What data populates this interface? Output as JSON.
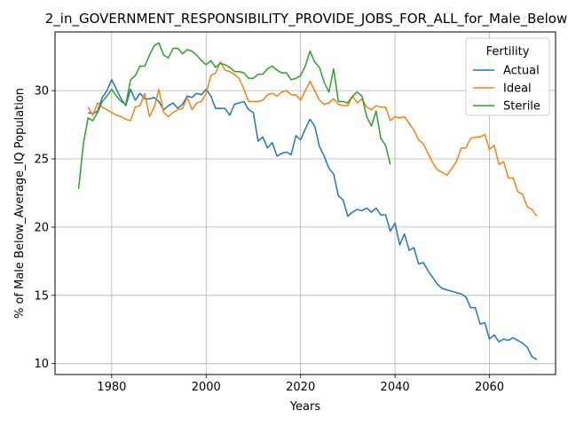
{
  "chart_data": {
    "type": "line",
    "title": "2_in_GOVERNMENT_RESPONSIBILITY_PROVIDE_JOBS_FOR_ALL_for_Male_Below",
    "xlabel": "Years",
    "ylabel": "% of Male Below_Average_IQ Population",
    "xlim": [
      1968,
      2074
    ],
    "ylim": [
      9.2,
      34.3
    ],
    "xticks": [
      1980,
      2000,
      2020,
      2040,
      2060
    ],
    "yticks": [
      10,
      15,
      20,
      25,
      30
    ],
    "grid": true,
    "legend": {
      "title": "Fertility",
      "placement": "top-right"
    },
    "series": [
      {
        "name": "Actual",
        "color": "#1f77b4",
        "x": [
          1975,
          1976,
          1977,
          1978,
          1979,
          1980,
          1981,
          1982,
          1983,
          1984,
          1985,
          1986,
          1987,
          1988,
          1989,
          1990,
          1991,
          1992,
          1993,
          1994,
          1995,
          1996,
          1997,
          1998,
          1999,
          2000,
          2001,
          2002,
          2003,
          2004,
          2005,
          2006,
          2007,
          2008,
          2009,
          2010,
          2011,
          2012,
          2013,
          2014,
          2015,
          2016,
          2017,
          2018,
          2019,
          2020,
          2021,
          2022,
          2023,
          2024,
          2025,
          2026,
          2027,
          2028,
          2029,
          2030,
          2031,
          2032,
          2033,
          2034,
          2035,
          2036,
          2037,
          2038,
          2039,
          2040,
          2041,
          2042,
          2043,
          2044,
          2045,
          2046,
          2047,
          2048,
          2049,
          2050,
          2051,
          2052,
          2053,
          2054,
          2055,
          2056,
          2057,
          2058,
          2059,
          2060,
          2061,
          2062,
          2063,
          2064,
          2065,
          2066,
          2067,
          2068,
          2069,
          2070
        ],
        "values": [
          28.4,
          28.3,
          28.5,
          29.5,
          30.0,
          30.8,
          30.1,
          29.4,
          28.9,
          30.1,
          29.3,
          29.8,
          29.4,
          29.4,
          29.5,
          29.2,
          28.6,
          28.9,
          29.1,
          28.7,
          29.0,
          29.6,
          29.5,
          29.8,
          29.7,
          30.1,
          29.6,
          28.7,
          28.7,
          28.7,
          28.2,
          29.0,
          29.1,
          29.2,
          28.6,
          28.4,
          26.3,
          26.6,
          25.8,
          26.2,
          25.2,
          25.4,
          25.5,
          25.3,
          26.7,
          26.4,
          27.2,
          27.9,
          27.4,
          25.9,
          25.2,
          24.3,
          23.9,
          22.3,
          22.0,
          20.8,
          21.1,
          21.3,
          21.2,
          21.4,
          21.1,
          21.4,
          20.9,
          20.9,
          19.7,
          20.3,
          18.7,
          19.5,
          18.3,
          18.5,
          17.3,
          17.4,
          16.8,
          16.3,
          15.8,
          15.5,
          15.4,
          15.3,
          15.2,
          15.1,
          14.9,
          14.1,
          14.1,
          12.9,
          13.0,
          11.8,
          12.1,
          11.6,
          11.8,
          11.7,
          11.9,
          11.7,
          11.5,
          11.2,
          10.5,
          10.3
        ]
      },
      {
        "name": "Ideal",
        "color": "#ff7f0e",
        "x": [
          1975,
          1976,
          1977,
          1978,
          1979,
          1980,
          1981,
          1982,
          1983,
          1984,
          1985,
          1986,
          1987,
          1988,
          1989,
          1990,
          1991,
          1992,
          1993,
          1994,
          1995,
          1996,
          1997,
          1998,
          1999,
          2000,
          2001,
          2002,
          2003,
          2004,
          2005,
          2006,
          2007,
          2008,
          2009,
          2010,
          2011,
          2012,
          2013,
          2014,
          2015,
          2016,
          2017,
          2018,
          2019,
          2020,
          2021,
          2022,
          2023,
          2024,
          2025,
          2026,
          2027,
          2028,
          2029,
          2030,
          2031,
          2032,
          2033,
          2034,
          2035,
          2036,
          2037,
          2038,
          2039,
          2040,
          2041,
          2042,
          2043,
          2044,
          2045,
          2046,
          2047,
          2048,
          2049,
          2050,
          2051,
          2052,
          2053,
          2054,
          2055,
          2056,
          2057,
          2058,
          2059,
          2060,
          2061,
          2062,
          2063,
          2064,
          2065,
          2066,
          2067,
          2068,
          2069,
          2070
        ],
        "values": [
          28.8,
          28.2,
          29.1,
          28.8,
          28.6,
          28.4,
          28.2,
          28.1,
          27.9,
          27.8,
          28.8,
          28.9,
          29.8,
          28.1,
          28.8,
          30.1,
          28.4,
          28.1,
          28.4,
          28.6,
          28.7,
          29.5,
          28.6,
          29.1,
          29.2,
          29.8,
          31.1,
          31.3,
          32.1,
          31.5,
          31.4,
          31.2,
          30.9,
          30.1,
          29.2,
          29.2,
          29.2,
          29.3,
          29.7,
          29.8,
          29.6,
          29.9,
          30.0,
          29.7,
          29.7,
          29.3,
          30.0,
          30.7,
          30.0,
          29.3,
          29.0,
          29.1,
          29.4,
          29.0,
          28.9,
          28.9,
          29.6,
          29.1,
          29.4,
          28.8,
          28.6,
          28.9,
          28.8,
          28.8,
          27.8,
          28.1,
          28.0,
          28.1,
          27.6,
          27.1,
          26.4,
          26.1,
          25.4,
          24.7,
          24.2,
          24.0,
          23.8,
          24.3,
          24.8,
          25.8,
          25.8,
          26.5,
          26.6,
          26.6,
          26.8,
          25.7,
          26.0,
          24.6,
          24.8,
          23.6,
          23.6,
          22.6,
          22.4,
          21.5,
          21.3,
          20.8
        ]
      },
      {
        "name": "Sterile",
        "color": "#2ca02c",
        "x": [
          1973,
          1974,
          1975,
          1976,
          1977,
          1978,
          1979,
          1980,
          1981,
          1982,
          1983,
          1984,
          1985,
          1986,
          1987,
          1988,
          1989,
          1990,
          1991,
          1992,
          1993,
          1994,
          1995,
          1996,
          1997,
          1998,
          1999,
          2000,
          2001,
          2002,
          2003,
          2004,
          2005,
          2006,
          2007,
          2008,
          2009,
          2010,
          2011,
          2012,
          2013,
          2014,
          2015,
          2016,
          2017,
          2018,
          2019,
          2020,
          2021,
          2022,
          2023,
          2024,
          2025,
          2026,
          2027,
          2028,
          2029,
          2030,
          2031,
          2032,
          2033,
          2034,
          2035,
          2036,
          2037,
          2038,
          2039
        ],
        "values": [
          22.8,
          26.1,
          28.0,
          27.8,
          28.4,
          29.2,
          29.6,
          30.1,
          29.6,
          29.2,
          29.0,
          30.8,
          31.1,
          31.8,
          31.8,
          32.6,
          33.3,
          33.5,
          32.6,
          32.4,
          33.1,
          33.1,
          32.7,
          33.0,
          32.9,
          32.6,
          32.2,
          31.9,
          32.2,
          31.7,
          32.0,
          31.9,
          31.7,
          31.4,
          31.4,
          31.3,
          30.9,
          30.9,
          31.2,
          31.2,
          31.6,
          31.8,
          31.5,
          31.3,
          31.3,
          30.8,
          30.9,
          31.1,
          31.8,
          32.9,
          32.1,
          31.7,
          30.6,
          29.9,
          31.6,
          29.2,
          29.2,
          29.1,
          29.6,
          29.9,
          29.6,
          28.1,
          27.4,
          28.5,
          26.5,
          26.0,
          24.6
        ]
      }
    ]
  }
}
